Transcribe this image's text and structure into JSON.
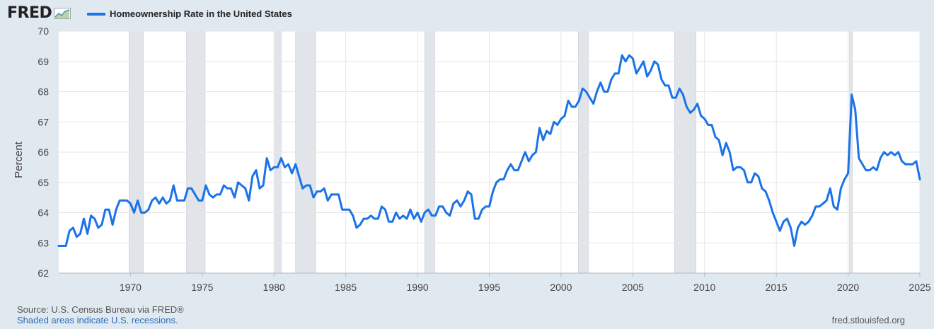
{
  "header": {
    "logo_text": "FRED",
    "legend_label": "Homeownership Rate in the United States",
    "series_color": "#1a73e8"
  },
  "footer": {
    "source": "Source: U.S. Census Bureau via FRED®",
    "recession_note": "Shaded areas indicate U.S. recessions.",
    "site": "fred.stlouisfed.org"
  },
  "chart_data": {
    "type": "line",
    "title": "",
    "xlabel": "",
    "ylabel": "Percent",
    "xlim": [
      1965.0,
      2025.0
    ],
    "ylim": [
      62,
      70
    ],
    "x_ticks": [
      1970,
      1975,
      1980,
      1985,
      1990,
      1995,
      2000,
      2005,
      2010,
      2015,
      2020,
      2025
    ],
    "y_ticks": [
      62,
      63,
      64,
      65,
      66,
      67,
      68,
      69,
      70
    ],
    "grid": true,
    "legend": "top-left",
    "recessions": [
      [
        1969.9,
        1970.9
      ],
      [
        1973.9,
        1975.2
      ],
      [
        1980.0,
        1980.5
      ],
      [
        1981.5,
        1982.9
      ],
      [
        1990.5,
        1991.2
      ],
      [
        2001.2,
        2001.9
      ],
      [
        2007.9,
        2009.4
      ],
      [
        2020.1,
        2020.3
      ]
    ],
    "series": [
      {
        "name": "Homeownership Rate in the United States",
        "points": [
          [
            1965.0,
            62.9
          ],
          [
            1965.5,
            62.9
          ],
          [
            1965.75,
            63.4
          ],
          [
            1966.0,
            63.5
          ],
          [
            1966.25,
            63.2
          ],
          [
            1966.5,
            63.3
          ],
          [
            1966.75,
            63.8
          ],
          [
            1967.0,
            63.3
          ],
          [
            1967.25,
            63.9
          ],
          [
            1967.5,
            63.8
          ],
          [
            1967.75,
            63.5
          ],
          [
            1968.0,
            63.6
          ],
          [
            1968.25,
            64.1
          ],
          [
            1968.5,
            64.1
          ],
          [
            1968.75,
            63.6
          ],
          [
            1969.0,
            64.1
          ],
          [
            1969.25,
            64.4
          ],
          [
            1969.5,
            64.4
          ],
          [
            1969.75,
            64.4
          ],
          [
            1970.0,
            64.3
          ],
          [
            1970.25,
            64.0
          ],
          [
            1970.5,
            64.4
          ],
          [
            1970.75,
            64.0
          ],
          [
            1971.0,
            64.0
          ],
          [
            1971.25,
            64.1
          ],
          [
            1971.5,
            64.4
          ],
          [
            1971.75,
            64.5
          ],
          [
            1972.0,
            64.3
          ],
          [
            1972.25,
            64.5
          ],
          [
            1972.5,
            64.3
          ],
          [
            1972.75,
            64.4
          ],
          [
            1973.0,
            64.9
          ],
          [
            1973.25,
            64.4
          ],
          [
            1973.5,
            64.4
          ],
          [
            1973.75,
            64.4
          ],
          [
            1974.0,
            64.8
          ],
          [
            1974.25,
            64.8
          ],
          [
            1974.5,
            64.6
          ],
          [
            1974.75,
            64.4
          ],
          [
            1975.0,
            64.4
          ],
          [
            1975.25,
            64.9
          ],
          [
            1975.5,
            64.6
          ],
          [
            1975.75,
            64.5
          ],
          [
            1976.0,
            64.6
          ],
          [
            1976.25,
            64.6
          ],
          [
            1976.5,
            64.9
          ],
          [
            1976.75,
            64.8
          ],
          [
            1977.0,
            64.8
          ],
          [
            1977.25,
            64.5
          ],
          [
            1977.5,
            65.0
          ],
          [
            1977.75,
            64.9
          ],
          [
            1978.0,
            64.8
          ],
          [
            1978.25,
            64.4
          ],
          [
            1978.5,
            65.2
          ],
          [
            1978.75,
            65.4
          ],
          [
            1979.0,
            64.8
          ],
          [
            1979.25,
            64.9
          ],
          [
            1979.5,
            65.8
          ],
          [
            1979.75,
            65.4
          ],
          [
            1980.0,
            65.5
          ],
          [
            1980.25,
            65.5
          ],
          [
            1980.5,
            65.8
          ],
          [
            1980.75,
            65.5
          ],
          [
            1981.0,
            65.6
          ],
          [
            1981.25,
            65.3
          ],
          [
            1981.5,
            65.6
          ],
          [
            1981.75,
            65.2
          ],
          [
            1982.0,
            64.8
          ],
          [
            1982.25,
            64.9
          ],
          [
            1982.5,
            64.9
          ],
          [
            1982.75,
            64.5
          ],
          [
            1983.0,
            64.7
          ],
          [
            1983.25,
            64.7
          ],
          [
            1983.5,
            64.8
          ],
          [
            1983.75,
            64.4
          ],
          [
            1984.0,
            64.6
          ],
          [
            1984.25,
            64.6
          ],
          [
            1984.5,
            64.6
          ],
          [
            1984.75,
            64.1
          ],
          [
            1985.0,
            64.1
          ],
          [
            1985.25,
            64.1
          ],
          [
            1985.5,
            63.9
          ],
          [
            1985.75,
            63.5
          ],
          [
            1986.0,
            63.6
          ],
          [
            1986.25,
            63.8
          ],
          [
            1986.5,
            63.8
          ],
          [
            1986.75,
            63.9
          ],
          [
            1987.0,
            63.8
          ],
          [
            1987.25,
            63.8
          ],
          [
            1987.5,
            64.2
          ],
          [
            1987.75,
            64.1
          ],
          [
            1988.0,
            63.7
          ],
          [
            1988.25,
            63.7
          ],
          [
            1988.5,
            64.0
          ],
          [
            1988.75,
            63.8
          ],
          [
            1989.0,
            63.9
          ],
          [
            1989.25,
            63.8
          ],
          [
            1989.5,
            64.1
          ],
          [
            1989.75,
            63.8
          ],
          [
            1990.0,
            64.0
          ],
          [
            1990.25,
            63.7
          ],
          [
            1990.5,
            64.0
          ],
          [
            1990.75,
            64.1
          ],
          [
            1991.0,
            63.9
          ],
          [
            1991.25,
            63.9
          ],
          [
            1991.5,
            64.2
          ],
          [
            1991.75,
            64.2
          ],
          [
            1992.0,
            64.0
          ],
          [
            1992.25,
            63.9
          ],
          [
            1992.5,
            64.3
          ],
          [
            1992.75,
            64.4
          ],
          [
            1993.0,
            64.2
          ],
          [
            1993.25,
            64.4
          ],
          [
            1993.5,
            64.7
          ],
          [
            1993.75,
            64.6
          ],
          [
            1994.0,
            63.8
          ],
          [
            1994.25,
            63.8
          ],
          [
            1994.5,
            64.1
          ],
          [
            1994.75,
            64.2
          ],
          [
            1995.0,
            64.2
          ],
          [
            1995.25,
            64.7
          ],
          [
            1995.5,
            65.0
          ],
          [
            1995.75,
            65.1
          ],
          [
            1996.0,
            65.1
          ],
          [
            1996.25,
            65.4
          ],
          [
            1996.5,
            65.6
          ],
          [
            1996.75,
            65.4
          ],
          [
            1997.0,
            65.4
          ],
          [
            1997.25,
            65.7
          ],
          [
            1997.5,
            66.0
          ],
          [
            1997.75,
            65.7
          ],
          [
            1998.0,
            65.9
          ],
          [
            1998.25,
            66.0
          ],
          [
            1998.5,
            66.8
          ],
          [
            1998.75,
            66.4
          ],
          [
            1999.0,
            66.7
          ],
          [
            1999.25,
            66.6
          ],
          [
            1999.5,
            67.0
          ],
          [
            1999.75,
            66.9
          ],
          [
            2000.0,
            67.1
          ],
          [
            2000.25,
            67.2
          ],
          [
            2000.5,
            67.7
          ],
          [
            2000.75,
            67.5
          ],
          [
            2001.0,
            67.5
          ],
          [
            2001.25,
            67.7
          ],
          [
            2001.5,
            68.1
          ],
          [
            2001.75,
            68.0
          ],
          [
            2002.0,
            67.8
          ],
          [
            2002.25,
            67.6
          ],
          [
            2002.5,
            68.0
          ],
          [
            2002.75,
            68.3
          ],
          [
            2003.0,
            68.0
          ],
          [
            2003.25,
            68.0
          ],
          [
            2003.5,
            68.4
          ],
          [
            2003.75,
            68.6
          ],
          [
            2004.0,
            68.6
          ],
          [
            2004.25,
            69.2
          ],
          [
            2004.5,
            69.0
          ],
          [
            2004.75,
            69.2
          ],
          [
            2005.0,
            69.1
          ],
          [
            2005.25,
            68.6
          ],
          [
            2005.5,
            68.8
          ],
          [
            2005.75,
            69.0
          ],
          [
            2006.0,
            68.5
          ],
          [
            2006.25,
            68.7
          ],
          [
            2006.5,
            69.0
          ],
          [
            2006.75,
            68.9
          ],
          [
            2007.0,
            68.4
          ],
          [
            2007.25,
            68.2
          ],
          [
            2007.5,
            68.2
          ],
          [
            2007.75,
            67.8
          ],
          [
            2008.0,
            67.8
          ],
          [
            2008.25,
            68.1
          ],
          [
            2008.5,
            67.9
          ],
          [
            2008.75,
            67.5
          ],
          [
            2009.0,
            67.3
          ],
          [
            2009.25,
            67.4
          ],
          [
            2009.5,
            67.6
          ],
          [
            2009.75,
            67.2
          ],
          [
            2010.0,
            67.1
          ],
          [
            2010.25,
            66.9
          ],
          [
            2010.5,
            66.9
          ],
          [
            2010.75,
            66.5
          ],
          [
            2011.0,
            66.4
          ],
          [
            2011.25,
            65.9
          ],
          [
            2011.5,
            66.3
          ],
          [
            2011.75,
            66.0
          ],
          [
            2012.0,
            65.4
          ],
          [
            2012.25,
            65.5
          ],
          [
            2012.5,
            65.5
          ],
          [
            2012.75,
            65.4
          ],
          [
            2013.0,
            65.0
          ],
          [
            2013.25,
            65.0
          ],
          [
            2013.5,
            65.3
          ],
          [
            2013.75,
            65.2
          ],
          [
            2014.0,
            64.8
          ],
          [
            2014.25,
            64.7
          ],
          [
            2014.5,
            64.4
          ],
          [
            2014.75,
            64.0
          ],
          [
            2015.0,
            63.7
          ],
          [
            2015.25,
            63.4
          ],
          [
            2015.5,
            63.7
          ],
          [
            2015.75,
            63.8
          ],
          [
            2016.0,
            63.5
          ],
          [
            2016.25,
            62.9
          ],
          [
            2016.5,
            63.5
          ],
          [
            2016.75,
            63.7
          ],
          [
            2017.0,
            63.6
          ],
          [
            2017.25,
            63.7
          ],
          [
            2017.5,
            63.9
          ],
          [
            2017.75,
            64.2
          ],
          [
            2018.0,
            64.2
          ],
          [
            2018.25,
            64.3
          ],
          [
            2018.5,
            64.4
          ],
          [
            2018.75,
            64.8
          ],
          [
            2019.0,
            64.2
          ],
          [
            2019.25,
            64.1
          ],
          [
            2019.5,
            64.8
          ],
          [
            2019.75,
            65.1
          ],
          [
            2020.0,
            65.3
          ],
          [
            2020.25,
            67.9
          ],
          [
            2020.5,
            67.4
          ],
          [
            2020.75,
            65.8
          ],
          [
            2021.0,
            65.6
          ],
          [
            2021.25,
            65.4
          ],
          [
            2021.5,
            65.4
          ],
          [
            2021.75,
            65.5
          ],
          [
            2022.0,
            65.4
          ],
          [
            2022.25,
            65.8
          ],
          [
            2022.5,
            66.0
          ],
          [
            2022.75,
            65.9
          ],
          [
            2023.0,
            66.0
          ],
          [
            2023.25,
            65.9
          ],
          [
            2023.5,
            66.0
          ],
          [
            2023.75,
            65.7
          ],
          [
            2024.0,
            65.6
          ],
          [
            2024.25,
            65.6
          ],
          [
            2024.5,
            65.6
          ],
          [
            2024.75,
            65.7
          ],
          [
            2025.0,
            65.1
          ]
        ]
      }
    ]
  }
}
